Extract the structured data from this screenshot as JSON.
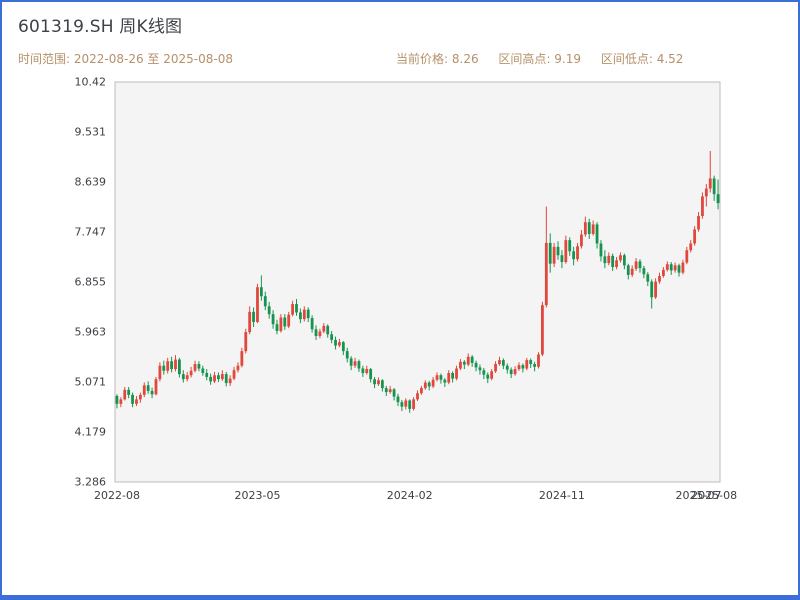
{
  "header": {
    "title": "601319.SH 周K线图",
    "range_label": "时间范围: 2022-08-26 至 2025-08-08",
    "stats": [
      {
        "label": "当前价格",
        "value": "8.26"
      },
      {
        "label": "区间高点",
        "value": "9.19"
      },
      {
        "label": "区间低点",
        "value": "4.52"
      }
    ]
  },
  "chart_data": {
    "type": "candlestick",
    "symbol": "601319.SH",
    "period": "weekly",
    "title": "601319.SH 周K线图",
    "ylim": [
      3.286,
      10.42
    ],
    "y_ticks": [
      10.42,
      9.531,
      8.639,
      7.747,
      6.855,
      5.963,
      5.071,
      4.179,
      3.286
    ],
    "x_ticks": [
      {
        "label": "2022-08",
        "index": 0
      },
      {
        "label": "2023-05",
        "index": 36
      },
      {
        "label": "2024-02",
        "index": 75
      },
      {
        "label": "2024-11",
        "index": 114
      },
      {
        "label": "2025-07",
        "index": 149
      },
      {
        "label": "2025-08",
        "index": 153
      }
    ],
    "up_color": "#e0483c",
    "down_color": "#17934f",
    "panel_bg": "#f4f4f5",
    "panel_border": "#bdbdbd",
    "legend": "none",
    "grid": false,
    "columns": [
      "date",
      "open",
      "high",
      "low",
      "close"
    ],
    "candles": [
      [
        "2022-08-26",
        4.82,
        4.85,
        4.6,
        4.68
      ],
      [
        "2022-09-02",
        4.68,
        4.8,
        4.62,
        4.76
      ],
      [
        "2022-09-09",
        4.76,
        4.98,
        4.74,
        4.93
      ],
      [
        "2022-09-16",
        4.93,
        4.98,
        4.78,
        4.84
      ],
      [
        "2022-09-23",
        4.84,
        4.88,
        4.62,
        4.68
      ],
      [
        "2022-09-30",
        4.68,
        4.82,
        4.64,
        4.76
      ],
      [
        "2022-10-07",
        4.76,
        4.88,
        4.7,
        4.84
      ],
      [
        "2022-10-14",
        4.84,
        5.06,
        4.8,
        5.01
      ],
      [
        "2022-10-21",
        5.01,
        5.08,
        4.86,
        4.91
      ],
      [
        "2022-10-28",
        4.91,
        4.97,
        4.78,
        4.85
      ],
      [
        "2022-11-04",
        4.85,
        5.16,
        4.83,
        5.12
      ],
      [
        "2022-11-11",
        5.12,
        5.42,
        5.08,
        5.36
      ],
      [
        "2022-11-18",
        5.36,
        5.45,
        5.2,
        5.27
      ],
      [
        "2022-11-25",
        5.27,
        5.5,
        5.22,
        5.44
      ],
      [
        "2022-12-02",
        5.44,
        5.52,
        5.24,
        5.3
      ],
      [
        "2022-12-09",
        5.3,
        5.55,
        5.26,
        5.47
      ],
      [
        "2022-12-16",
        5.47,
        5.5,
        5.15,
        5.21
      ],
      [
        "2022-12-23",
        5.21,
        5.28,
        5.06,
        5.12
      ],
      [
        "2022-12-30",
        5.12,
        5.25,
        5.08,
        5.19
      ],
      [
        "2023-01-06",
        5.19,
        5.34,
        5.15,
        5.27
      ],
      [
        "2023-01-13",
        5.27,
        5.45,
        5.24,
        5.39
      ],
      [
        "2023-01-20",
        5.39,
        5.44,
        5.26,
        5.31
      ],
      [
        "2023-01-27",
        5.31,
        5.36,
        5.18,
        5.23
      ],
      [
        "2023-02-03",
        5.23,
        5.3,
        5.1,
        5.16
      ],
      [
        "2023-02-10",
        5.16,
        5.22,
        5.02,
        5.08
      ],
      [
        "2023-02-17",
        5.08,
        5.25,
        5.05,
        5.19
      ],
      [
        "2023-02-24",
        5.19,
        5.24,
        5.07,
        5.12
      ],
      [
        "2023-03-03",
        5.12,
        5.28,
        5.09,
        5.21
      ],
      [
        "2023-03-10",
        5.21,
        5.25,
        4.99,
        5.05
      ],
      [
        "2023-03-17",
        5.05,
        5.19,
        5.0,
        5.13
      ],
      [
        "2023-03-24",
        5.13,
        5.34,
        5.1,
        5.28
      ],
      [
        "2023-03-31",
        5.28,
        5.42,
        5.24,
        5.36
      ],
      [
        "2023-04-07",
        5.36,
        5.68,
        5.33,
        5.62
      ],
      [
        "2023-04-14",
        5.62,
        6.02,
        5.58,
        5.96
      ],
      [
        "2023-04-21",
        5.96,
        6.42,
        5.92,
        6.32
      ],
      [
        "2023-04-28",
        6.32,
        6.4,
        6.05,
        6.14
      ],
      [
        "2023-05-05",
        6.14,
        6.82,
        6.12,
        6.76
      ],
      [
        "2023-05-12",
        6.76,
        6.97,
        6.52,
        6.6
      ],
      [
        "2023-05-19",
        6.6,
        6.68,
        6.35,
        6.42
      ],
      [
        "2023-05-26",
        6.42,
        6.5,
        6.2,
        6.28
      ],
      [
        "2023-06-02",
        6.28,
        6.35,
        6.02,
        6.1
      ],
      [
        "2023-06-09",
        6.1,
        6.18,
        5.92,
        5.98
      ],
      [
        "2023-06-16",
        5.98,
        6.28,
        5.95,
        6.22
      ],
      [
        "2023-06-23",
        6.22,
        6.28,
        6.0,
        6.06
      ],
      [
        "2023-06-30",
        6.06,
        6.32,
        6.03,
        6.27
      ],
      [
        "2023-07-07",
        6.27,
        6.52,
        6.24,
        6.46
      ],
      [
        "2023-07-14",
        6.46,
        6.55,
        6.25,
        6.31
      ],
      [
        "2023-07-21",
        6.31,
        6.38,
        6.12,
        6.19
      ],
      [
        "2023-07-28",
        6.19,
        6.42,
        6.15,
        6.36
      ],
      [
        "2023-08-04",
        6.36,
        6.4,
        6.14,
        6.21
      ],
      [
        "2023-08-11",
        6.21,
        6.26,
        5.95,
        6.01
      ],
      [
        "2023-08-18",
        6.01,
        6.08,
        5.82,
        5.89
      ],
      [
        "2023-08-25",
        5.89,
        6.02,
        5.85,
        5.97
      ],
      [
        "2023-09-01",
        5.97,
        6.12,
        5.94,
        6.07
      ],
      [
        "2023-09-08",
        6.07,
        6.1,
        5.86,
        5.92
      ],
      [
        "2023-09-15",
        5.92,
        5.98,
        5.76,
        5.82
      ],
      [
        "2023-09-22",
        5.82,
        5.88,
        5.65,
        5.72
      ],
      [
        "2023-09-29",
        5.72,
        5.84,
        5.69,
        5.78
      ],
      [
        "2023-10-06",
        5.78,
        5.8,
        5.55,
        5.62
      ],
      [
        "2023-10-13",
        5.62,
        5.68,
        5.42,
        5.49
      ],
      [
        "2023-10-20",
        5.49,
        5.53,
        5.28,
        5.36
      ],
      [
        "2023-10-27",
        5.36,
        5.5,
        5.32,
        5.44
      ],
      [
        "2023-11-03",
        5.44,
        5.47,
        5.25,
        5.31
      ],
      [
        "2023-11-10",
        5.31,
        5.36,
        5.16,
        5.23
      ],
      [
        "2023-11-17",
        5.23,
        5.36,
        5.2,
        5.3
      ],
      [
        "2023-11-24",
        5.3,
        5.32,
        5.06,
        5.12
      ],
      [
        "2023-12-01",
        5.12,
        5.16,
        4.96,
        5.03
      ],
      [
        "2023-12-08",
        5.03,
        5.15,
        5.0,
        5.1
      ],
      [
        "2023-12-15",
        5.1,
        5.12,
        4.9,
        4.96
      ],
      [
        "2023-12-22",
        4.96,
        5.0,
        4.82,
        4.89
      ],
      [
        "2023-12-29",
        4.89,
        5.0,
        4.86,
        4.94
      ],
      [
        "2024-01-05",
        4.94,
        4.96,
        4.74,
        4.81
      ],
      [
        "2024-01-12",
        4.81,
        4.86,
        4.64,
        4.71
      ],
      [
        "2024-01-19",
        4.71,
        4.75,
        4.55,
        4.63
      ],
      [
        "2024-01-26",
        4.63,
        4.78,
        4.58,
        4.74
      ],
      [
        "2024-02-02",
        4.74,
        4.76,
        4.52,
        4.59
      ],
      [
        "2024-02-09",
        4.59,
        4.8,
        4.56,
        4.76
      ],
      [
        "2024-02-16",
        4.76,
        4.92,
        4.73,
        4.87
      ],
      [
        "2024-02-23",
        4.87,
        5.0,
        4.84,
        4.96
      ],
      [
        "2024-03-01",
        4.96,
        5.1,
        4.93,
        5.06
      ],
      [
        "2024-03-08",
        5.06,
        5.09,
        4.92,
        4.99
      ],
      [
        "2024-03-15",
        4.99,
        5.16,
        4.96,
        5.11
      ],
      [
        "2024-03-22",
        5.11,
        5.24,
        5.08,
        5.19
      ],
      [
        "2024-03-29",
        5.19,
        5.22,
        5.04,
        5.11
      ],
      [
        "2024-04-05",
        5.11,
        5.14,
        4.98,
        5.06
      ],
      [
        "2024-04-12",
        5.06,
        5.28,
        5.03,
        5.23
      ],
      [
        "2024-04-19",
        5.23,
        5.26,
        5.06,
        5.13
      ],
      [
        "2024-04-26",
        5.13,
        5.36,
        5.1,
        5.31
      ],
      [
        "2024-05-03",
        5.31,
        5.48,
        5.28,
        5.43
      ],
      [
        "2024-05-10",
        5.43,
        5.46,
        5.3,
        5.38
      ],
      [
        "2024-05-17",
        5.38,
        5.58,
        5.35,
        5.52
      ],
      [
        "2024-05-24",
        5.52,
        5.55,
        5.34,
        5.41
      ],
      [
        "2024-05-31",
        5.41,
        5.45,
        5.26,
        5.33
      ],
      [
        "2024-06-07",
        5.33,
        5.38,
        5.2,
        5.28
      ],
      [
        "2024-06-14",
        5.28,
        5.32,
        5.12,
        5.2
      ],
      [
        "2024-06-21",
        5.2,
        5.24,
        5.05,
        5.13
      ],
      [
        "2024-06-28",
        5.13,
        5.3,
        5.1,
        5.26
      ],
      [
        "2024-07-05",
        5.26,
        5.44,
        5.23,
        5.39
      ],
      [
        "2024-07-12",
        5.39,
        5.52,
        5.36,
        5.46
      ],
      [
        "2024-07-19",
        5.46,
        5.49,
        5.3,
        5.36
      ],
      [
        "2024-07-26",
        5.36,
        5.4,
        5.22,
        5.29
      ],
      [
        "2024-08-02",
        5.29,
        5.33,
        5.14,
        5.21
      ],
      [
        "2024-08-09",
        5.21,
        5.35,
        5.18,
        5.3
      ],
      [
        "2024-08-16",
        5.3,
        5.42,
        5.27,
        5.37
      ],
      [
        "2024-08-23",
        5.37,
        5.4,
        5.24,
        5.31
      ],
      [
        "2024-08-30",
        5.31,
        5.5,
        5.28,
        5.46
      ],
      [
        "2024-09-06",
        5.46,
        5.49,
        5.32,
        5.39
      ],
      [
        "2024-09-13",
        5.39,
        5.43,
        5.26,
        5.34
      ],
      [
        "2024-09-20",
        5.34,
        5.6,
        5.31,
        5.56
      ],
      [
        "2024-09-27",
        5.56,
        6.5,
        5.53,
        6.44
      ],
      [
        "2024-10-04",
        6.44,
        8.2,
        6.4,
        7.55
      ],
      [
        "2024-10-11",
        7.55,
        7.72,
        7.02,
        7.18
      ],
      [
        "2024-10-18",
        7.18,
        7.55,
        7.12,
        7.48
      ],
      [
        "2024-10-25",
        7.48,
        7.58,
        7.25,
        7.33
      ],
      [
        "2024-11-01",
        7.33,
        7.42,
        7.1,
        7.21
      ],
      [
        "2024-11-08",
        7.21,
        7.68,
        7.18,
        7.6
      ],
      [
        "2024-11-15",
        7.6,
        7.65,
        7.32,
        7.4
      ],
      [
        "2024-11-22",
        7.4,
        7.48,
        7.15,
        7.26
      ],
      [
        "2024-11-29",
        7.26,
        7.55,
        7.22,
        7.49
      ],
      [
        "2024-12-06",
        7.49,
        7.78,
        7.45,
        7.7
      ],
      [
        "2024-12-13",
        7.7,
        8.02,
        7.66,
        7.92
      ],
      [
        "2024-12-20",
        7.92,
        7.98,
        7.62,
        7.71
      ],
      [
        "2024-12-27",
        7.71,
        7.95,
        7.68,
        7.88
      ],
      [
        "2025-01-03",
        7.88,
        7.92,
        7.45,
        7.54
      ],
      [
        "2025-01-10",
        7.54,
        7.6,
        7.22,
        7.31
      ],
      [
        "2025-01-17",
        7.31,
        7.42,
        7.1,
        7.19
      ],
      [
        "2025-01-24",
        7.19,
        7.38,
        7.15,
        7.32
      ],
      [
        "2025-01-31",
        7.32,
        7.36,
        7.05,
        7.12
      ],
      [
        "2025-02-07",
        7.12,
        7.3,
        7.08,
        7.24
      ],
      [
        "2025-02-14",
        7.24,
        7.38,
        7.2,
        7.33
      ],
      [
        "2025-02-21",
        7.33,
        7.36,
        7.08,
        7.15
      ],
      [
        "2025-02-28",
        7.15,
        7.18,
        6.9,
        6.98
      ],
      [
        "2025-03-07",
        6.98,
        7.15,
        6.94,
        7.09
      ],
      [
        "2025-03-14",
        7.09,
        7.28,
        7.05,
        7.22
      ],
      [
        "2025-03-21",
        7.22,
        7.26,
        7.02,
        7.1
      ],
      [
        "2025-03-28",
        7.1,
        7.14,
        6.92,
        6.99
      ],
      [
        "2025-04-04",
        6.99,
        7.03,
        6.78,
        6.86
      ],
      [
        "2025-04-11",
        6.86,
        6.9,
        6.38,
        6.58
      ],
      [
        "2025-04-18",
        6.58,
        6.92,
        6.55,
        6.86
      ],
      [
        "2025-04-25",
        6.86,
        7.02,
        6.82,
        6.96
      ],
      [
        "2025-05-02",
        6.96,
        7.12,
        6.93,
        7.07
      ],
      [
        "2025-05-09",
        7.07,
        7.22,
        7.04,
        7.17
      ],
      [
        "2025-05-16",
        7.17,
        7.21,
        6.98,
        7.06
      ],
      [
        "2025-05-23",
        7.06,
        7.2,
        7.02,
        7.15
      ],
      [
        "2025-05-30",
        7.15,
        7.18,
        6.95,
        7.02
      ],
      [
        "2025-06-06",
        7.02,
        7.25,
        6.99,
        7.2
      ],
      [
        "2025-06-13",
        7.2,
        7.48,
        7.17,
        7.42
      ],
      [
        "2025-06-20",
        7.42,
        7.6,
        7.38,
        7.54
      ],
      [
        "2025-06-27",
        7.54,
        7.85,
        7.5,
        7.79
      ],
      [
        "2025-07-04",
        7.79,
        8.1,
        7.75,
        8.03
      ],
      [
        "2025-07-11",
        8.03,
        8.45,
        7.98,
        8.38
      ],
      [
        "2025-07-18",
        8.38,
        8.6,
        8.2,
        8.52
      ],
      [
        "2025-07-25",
        8.52,
        9.19,
        8.45,
        8.7
      ],
      [
        "2025-08-01",
        8.7,
        8.75,
        8.3,
        8.42
      ],
      [
        "2025-08-08",
        8.42,
        8.68,
        8.15,
        8.26
      ]
    ]
  }
}
